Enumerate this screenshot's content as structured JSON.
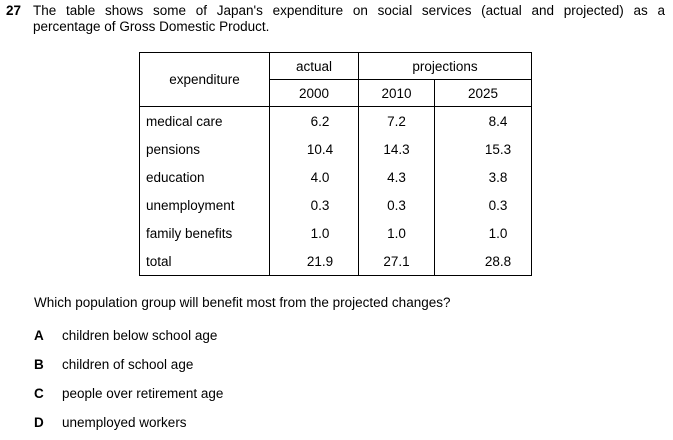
{
  "question_number": "27",
  "stem_line1": "The table shows some of Japan's expenditure on social services (actual and projected) as a",
  "stem_line2": "percentage of Gross Domestic Product.",
  "table": {
    "header_expenditure": "expenditure",
    "header_actual": "actual",
    "header_projections": "projections",
    "years": [
      "2000",
      "2010",
      "2025"
    ],
    "rows": [
      {
        "label": "medical care",
        "values": [
          "6.2",
          "7.2",
          "8.4"
        ]
      },
      {
        "label": "pensions",
        "values": [
          "10.4",
          "14.3",
          "15.3"
        ]
      },
      {
        "label": "education",
        "values": [
          "4.0",
          "4.3",
          "3.8"
        ]
      },
      {
        "label": "unemployment",
        "values": [
          "0.3",
          "0.3",
          "0.3"
        ]
      },
      {
        "label": "family benefits",
        "values": [
          "1.0",
          "1.0",
          "1.0"
        ]
      },
      {
        "label": "total",
        "values": [
          "21.9",
          "27.1",
          "28.8"
        ]
      }
    ]
  },
  "question": "Which population group will benefit most from the projected changes?",
  "options": [
    {
      "letter": "A",
      "text": "children below school age"
    },
    {
      "letter": "B",
      "text": "children of school age"
    },
    {
      "letter": "C",
      "text": "people over retirement age"
    },
    {
      "letter": "D",
      "text": "unemployed workers"
    }
  ]
}
